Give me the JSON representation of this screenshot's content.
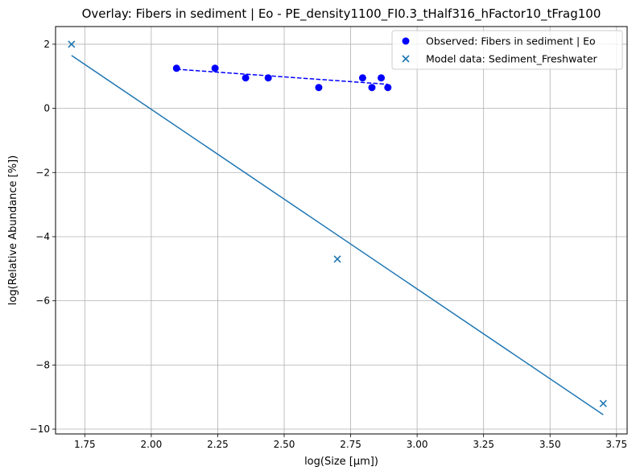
{
  "chart_data": {
    "type": "scatter",
    "title": "Overlay: Fibers in sediment | Eo - PE_density1100_FI0.3_tHalf316_hFactor10_tFrag100",
    "xlabel": "log(Size [µm])",
    "ylabel": "log(Relative Abundance [%])",
    "xlim": [
      1.64,
      3.79
    ],
    "ylim": [
      -10.15,
      2.55
    ],
    "xticks": [
      1.75,
      2.0,
      2.25,
      2.5,
      2.75,
      3.0,
      3.25,
      3.5,
      3.75
    ],
    "xtick_labels": [
      "1.75",
      "2.00",
      "2.25",
      "2.50",
      "2.75",
      "3.00",
      "3.25",
      "3.50",
      "3.75"
    ],
    "yticks": [
      -10,
      -8,
      -6,
      -4,
      -2,
      0,
      2
    ],
    "ytick_labels": [
      "−10",
      "−8",
      "−6",
      "−4",
      "−2",
      "0",
      "2"
    ],
    "grid": true,
    "legend_position": "top-right",
    "series": [
      {
        "name": "Observed: Fibers in sediment | Eo",
        "marker": "circle",
        "color": "#0000ff",
        "x": [
          2.095,
          2.24,
          2.355,
          2.44,
          2.63,
          2.795,
          2.83,
          2.865,
          2.89
        ],
        "y": [
          1.25,
          1.25,
          0.95,
          0.95,
          0.65,
          0.95,
          0.65,
          0.95,
          0.65
        ]
      },
      {
        "name": "Model data: Sediment_Freshwater",
        "marker": "x",
        "color": "#1f77b4",
        "x": [
          1.7,
          2.7,
          3.7
        ],
        "y": [
          2.0,
          -4.7,
          -9.2
        ]
      }
    ],
    "fit_lines": [
      {
        "color": "#0000ff",
        "style": "dashed",
        "x": [
          2.095,
          2.89
        ],
        "y": [
          1.22,
          0.75
        ]
      },
      {
        "color": "#1f77b4",
        "style": "solid",
        "x": [
          1.7,
          3.7
        ],
        "y": [
          1.65,
          -9.55
        ]
      }
    ]
  }
}
